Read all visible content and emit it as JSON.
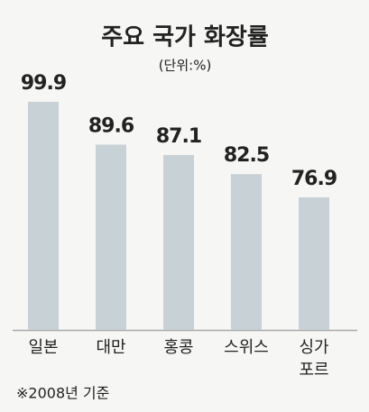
{
  "chart_data": {
    "type": "bar",
    "title": "주요 국가 화장률",
    "subtitle": "(단위:%)",
    "categories": [
      "일본",
      "대만",
      "홍콩",
      "스위스",
      "싱가\n포르"
    ],
    "values": [
      99.9,
      89.6,
      87.1,
      82.5,
      76.9
    ],
    "color": "#c7d1d6",
    "ylim": [
      45,
      100
    ],
    "note": "※2008년 기준"
  }
}
